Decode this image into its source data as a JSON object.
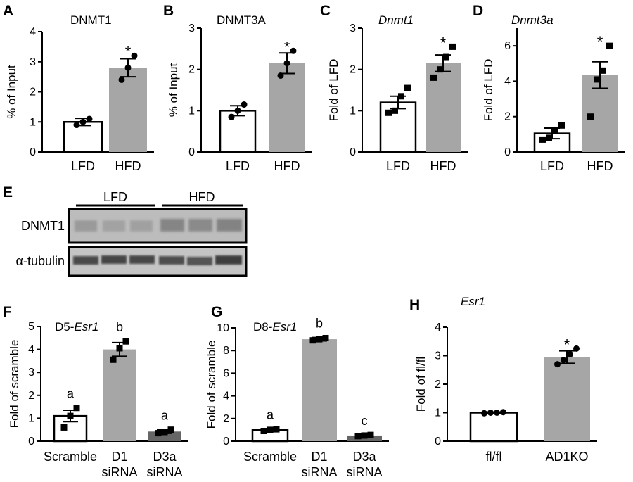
{
  "chart_data": [
    {
      "panel": "A",
      "type": "bar",
      "title": "DNMT1",
      "title_italic": false,
      "ylabel": "% of Input",
      "ylim": [
        0,
        4
      ],
      "yticks": [
        0,
        1,
        2,
        3,
        4
      ],
      "categories": [
        "LFD",
        "HFD"
      ],
      "values": [
        1.0,
        2.8
      ],
      "errors": [
        0.12,
        0.3
      ],
      "points": [
        [
          0.9,
          1.0,
          1.1
        ],
        [
          2.4,
          2.8,
          3.2
        ]
      ],
      "marker": "circle",
      "colors": [
        "#ffffff",
        "#a6a6a6"
      ],
      "annotations": [
        "",
        "*"
      ]
    },
    {
      "panel": "B",
      "type": "bar",
      "title": "DNMT3A",
      "title_italic": false,
      "ylabel": "% of Input",
      "ylim": [
        0,
        3
      ],
      "yticks": [
        0,
        1,
        2,
        3
      ],
      "categories": [
        "LFD",
        "HFD"
      ],
      "values": [
        1.0,
        2.15
      ],
      "errors": [
        0.12,
        0.25
      ],
      "points": [
        [
          0.85,
          1.0,
          1.15
        ],
        [
          1.85,
          2.15,
          2.45
        ]
      ],
      "marker": "circle",
      "colors": [
        "#ffffff",
        "#a6a6a6"
      ],
      "annotations": [
        "",
        "*"
      ]
    },
    {
      "panel": "C",
      "type": "bar",
      "title": "Dnmt1",
      "title_italic": true,
      "ylabel": "Fold of LFD",
      "ylim": [
        0,
        3
      ],
      "yticks": [
        0,
        1,
        2,
        3
      ],
      "categories": [
        "LFD",
        "HFD"
      ],
      "values": [
        1.2,
        2.15
      ],
      "errors": [
        0.15,
        0.2
      ],
      "points": [
        [
          0.95,
          1.0,
          1.35,
          1.55
        ],
        [
          1.8,
          2.0,
          2.3,
          2.55
        ]
      ],
      "marker": "square",
      "colors": [
        "#ffffff",
        "#a6a6a6"
      ],
      "annotations": [
        "",
        "*"
      ]
    },
    {
      "panel": "D",
      "type": "bar",
      "title": "Dnmt3a",
      "title_italic": true,
      "ylabel": "Fold of LFD",
      "ylim": [
        0,
        7
      ],
      "yticks": [
        0,
        2,
        4,
        6
      ],
      "categories": [
        "LFD",
        "HFD"
      ],
      "values": [
        1.05,
        4.35
      ],
      "errors": [
        0.3,
        0.75
      ],
      "points": [
        [
          0.7,
          0.8,
          1.2,
          1.5
        ],
        [
          2.0,
          4.1,
          4.6,
          6.0
        ]
      ],
      "marker": "square",
      "colors": [
        "#ffffff",
        "#a6a6a6"
      ],
      "annotations": [
        "",
        "*"
      ]
    },
    {
      "panel": "F",
      "type": "bar",
      "title": "D5-",
      "title_italic_part": "Esr1",
      "ylabel": "Fold of scramble",
      "ylim": [
        0,
        5
      ],
      "yticks": [
        0,
        1,
        2,
        3,
        4,
        5
      ],
      "categories": [
        "Scramble",
        "D1 siRNA",
        "D3a siRNA"
      ],
      "values": [
        1.1,
        4.0,
        0.42
      ],
      "errors": [
        0.25,
        0.3,
        0.08
      ],
      "points": [
        [
          0.6,
          1.1,
          1.45
        ],
        [
          3.55,
          4.05,
          4.35
        ],
        [
          0.35,
          0.4,
          0.5
        ]
      ],
      "marker": "square",
      "colors": [
        "#ffffff",
        "#a6a6a6",
        "#666666"
      ],
      "annotations": [
        "a",
        "b",
        "a"
      ]
    },
    {
      "panel": "G",
      "type": "bar",
      "title": "D8-",
      "title_italic_part": "Esr1",
      "ylabel": "Fold of scramble",
      "ylim": [
        0,
        10
      ],
      "yticks": [
        0,
        2,
        4,
        6,
        8,
        10
      ],
      "categories": [
        "Scramble",
        "D1 siRNA",
        "D3a siRNA"
      ],
      "values": [
        1.0,
        9.0,
        0.5
      ],
      "errors": [
        0.1,
        0.15,
        0.05
      ],
      "points": [
        [
          0.9,
          1.0,
          1.05
        ],
        [
          8.9,
          9.0,
          9.1
        ],
        [
          0.45,
          0.5,
          0.55
        ]
      ],
      "marker": "square",
      "colors": [
        "#ffffff",
        "#a6a6a6",
        "#666666"
      ],
      "annotations": [
        "a",
        "b",
        "c"
      ]
    },
    {
      "panel": "H",
      "type": "bar",
      "title": "Esr1",
      "title_italic": true,
      "ylabel": "Fold of fl/fl",
      "ylim": [
        0,
        4
      ],
      "yticks": [
        0,
        1,
        2,
        3,
        4
      ],
      "categories": [
        "fl/fl",
        "AD1KO"
      ],
      "values": [
        1.0,
        2.95
      ],
      "errors": [
        0.02,
        0.22
      ],
      "points": [
        [
          0.98,
          1.0,
          1.0,
          1.02
        ],
        [
          2.7,
          2.85,
          3.05,
          3.25
        ]
      ],
      "marker": "circle",
      "colors": [
        "#ffffff",
        "#a6a6a6"
      ],
      "annotations": [
        "",
        "*"
      ]
    }
  ],
  "blot": {
    "panel": "E",
    "group_labels": [
      "LFD",
      "HFD"
    ],
    "row_labels": [
      "DNMT1",
      "α-tubulin"
    ]
  }
}
